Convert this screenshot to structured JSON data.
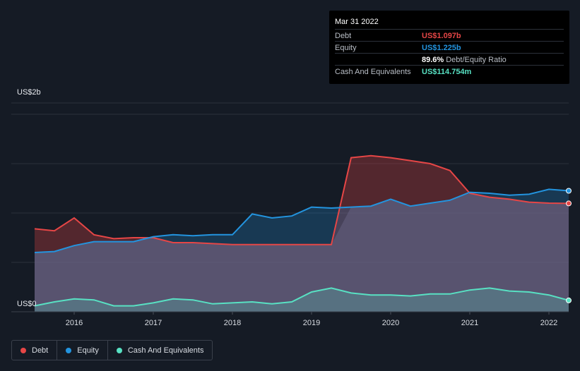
{
  "tooltip": {
    "date": "Mar 31 2022",
    "rows": [
      {
        "label": "Debt",
        "value": "US$1.097b",
        "color": "#e64646"
      },
      {
        "label": "Equity",
        "value": "US$1.225b",
        "color": "#2394df"
      },
      {
        "label": "",
        "value": "89.6%",
        "extra": "Debt/Equity Ratio",
        "color": "#ffffff"
      },
      {
        "label": "Cash And Equivalents",
        "value": "US$114.754m",
        "color": "#58e1c3"
      }
    ]
  },
  "y_axis": {
    "top_label": "US$2b",
    "bottom_label": "US$0"
  },
  "legend": [
    {
      "label": "Debt",
      "color": "#e64646"
    },
    {
      "label": "Equity",
      "color": "#2394df"
    },
    {
      "label": "Cash And Equivalents",
      "color": "#58e1c3"
    }
  ],
  "chart_data": {
    "type": "area",
    "ylim": [
      0,
      2.0
    ],
    "y_unit": "US$ billions",
    "x_ticks": [
      "2016",
      "2017",
      "2018",
      "2019",
      "2020",
      "2021",
      "2022"
    ],
    "series": [
      {
        "name": "Debt",
        "color": "#e64646",
        "points": [
          [
            "2015.50",
            0.84
          ],
          [
            "2015.75",
            0.82
          ],
          [
            "2016.00",
            0.95
          ],
          [
            "2016.25",
            0.78
          ],
          [
            "2016.50",
            0.74
          ],
          [
            "2016.75",
            0.75
          ],
          [
            "2017.00",
            0.75
          ],
          [
            "2017.25",
            0.7
          ],
          [
            "2017.50",
            0.7
          ],
          [
            "2017.75",
            0.69
          ],
          [
            "2018.00",
            0.68
          ],
          [
            "2018.25",
            0.68
          ],
          [
            "2018.50",
            0.68
          ],
          [
            "2018.75",
            0.68
          ],
          [
            "2019.00",
            0.68
          ],
          [
            "2019.25",
            0.68
          ],
          [
            "2019.50",
            1.56
          ],
          [
            "2019.75",
            1.58
          ],
          [
            "2020.00",
            1.56
          ],
          [
            "2020.25",
            1.53
          ],
          [
            "2020.50",
            1.5
          ],
          [
            "2020.75",
            1.43
          ],
          [
            "2021.00",
            1.2
          ],
          [
            "2021.25",
            1.16
          ],
          [
            "2021.50",
            1.14
          ],
          [
            "2021.75",
            1.11
          ],
          [
            "2022.00",
            1.1
          ],
          [
            "2022.25",
            1.097
          ]
        ]
      },
      {
        "name": "Equity",
        "color": "#2394df",
        "points": [
          [
            "2015.50",
            0.6
          ],
          [
            "2015.75",
            0.61
          ],
          [
            "2016.00",
            0.67
          ],
          [
            "2016.25",
            0.71
          ],
          [
            "2016.50",
            0.71
          ],
          [
            "2016.75",
            0.71
          ],
          [
            "2017.00",
            0.76
          ],
          [
            "2017.25",
            0.78
          ],
          [
            "2017.50",
            0.77
          ],
          [
            "2017.75",
            0.78
          ],
          [
            "2018.00",
            0.78
          ],
          [
            "2018.25",
            0.99
          ],
          [
            "2018.50",
            0.95
          ],
          [
            "2018.75",
            0.97
          ],
          [
            "2019.00",
            1.06
          ],
          [
            "2019.25",
            1.05
          ],
          [
            "2019.50",
            1.06
          ],
          [
            "2019.75",
            1.07
          ],
          [
            "2020.00",
            1.14
          ],
          [
            "2020.25",
            1.07
          ],
          [
            "2020.50",
            1.1
          ],
          [
            "2020.75",
            1.13
          ],
          [
            "2021.00",
            1.21
          ],
          [
            "2021.25",
            1.2
          ],
          [
            "2021.50",
            1.18
          ],
          [
            "2021.75",
            1.19
          ],
          [
            "2022.00",
            1.24
          ],
          [
            "2022.25",
            1.225
          ]
        ]
      },
      {
        "name": "Cash And Equivalents",
        "color": "#58e1c3",
        "points": [
          [
            "2015.50",
            0.06
          ],
          [
            "2015.75",
            0.1
          ],
          [
            "2016.00",
            0.13
          ],
          [
            "2016.25",
            0.12
          ],
          [
            "2016.50",
            0.06
          ],
          [
            "2016.75",
            0.06
          ],
          [
            "2017.00",
            0.09
          ],
          [
            "2017.25",
            0.13
          ],
          [
            "2017.50",
            0.12
          ],
          [
            "2017.75",
            0.08
          ],
          [
            "2018.00",
            0.09
          ],
          [
            "2018.25",
            0.1
          ],
          [
            "2018.50",
            0.08
          ],
          [
            "2018.75",
            0.1
          ],
          [
            "2019.00",
            0.2
          ],
          [
            "2019.25",
            0.24
          ],
          [
            "2019.50",
            0.19
          ],
          [
            "2019.75",
            0.17
          ],
          [
            "2020.00",
            0.17
          ],
          [
            "2020.25",
            0.16
          ],
          [
            "2020.50",
            0.18
          ],
          [
            "2020.75",
            0.18
          ],
          [
            "2021.00",
            0.22
          ],
          [
            "2021.25",
            0.24
          ],
          [
            "2021.50",
            0.21
          ],
          [
            "2021.75",
            0.2
          ],
          [
            "2022.00",
            0.17
          ],
          [
            "2022.25",
            0.115
          ]
        ]
      }
    ]
  }
}
